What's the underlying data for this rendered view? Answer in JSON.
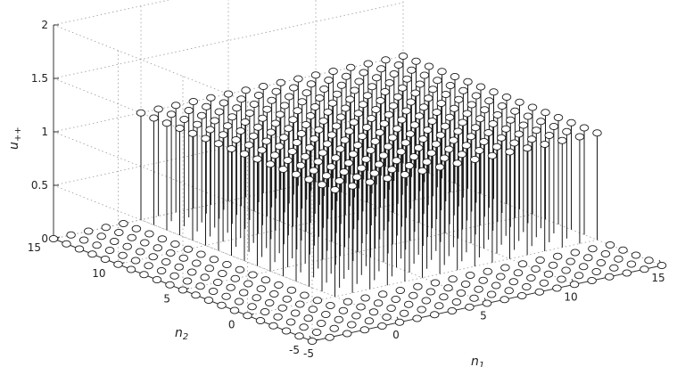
{
  "chart_data": {
    "type": "stem3",
    "title": "",
    "xlabel": "n",
    "xlabel_sub": "1",
    "ylabel": "n",
    "ylabel_sub": "2",
    "zlabel": "u",
    "zlabel_sub": "++",
    "n1_range": [
      -5,
      15
    ],
    "n2_range": [
      -5,
      15
    ],
    "zlim": [
      0,
      2
    ],
    "n1_ticks": [
      "-5",
      "0",
      "5",
      "10",
      "15"
    ],
    "n2_ticks": [
      "-5",
      "0",
      "5",
      "10",
      "15"
    ],
    "z_ticks": [
      "0",
      "0.5",
      "1",
      "1.5",
      "2"
    ],
    "grid": true,
    "support": {
      "n1_min": 0,
      "n1_max": 15,
      "n2_min": 0,
      "n2_max": 15,
      "value": 1
    },
    "outside_value": 0
  }
}
